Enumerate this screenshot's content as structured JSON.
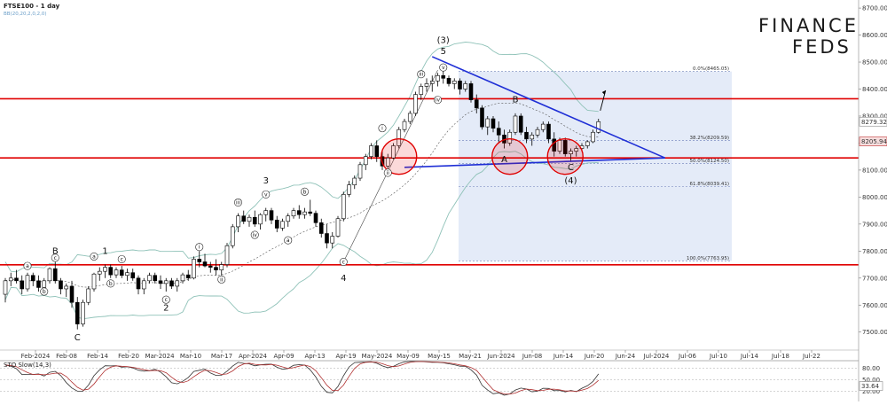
{
  "header": {
    "symbol_title": "FTSE100 - 1 day",
    "indicator_title": "BB(20,20,2,0,2,0)"
  },
  "logo": {
    "line1": "FINANCE",
    "line2": "FEDS"
  },
  "oscillator": {
    "title": "STO Slow(14,3)",
    "levels": [
      "80.00",
      "50.00",
      "20.00"
    ],
    "current_value": "33.64"
  },
  "colors": {
    "bull_candle": "#ffffff",
    "bear_candle": "#000000",
    "bollinger": "#8fc2b8",
    "support_resistance": "#e00000",
    "trendline": "#1f2fd6",
    "fib_box": "#dbe4f5",
    "stochastic_k": "#333333",
    "stochastic_d": "#b03030",
    "current_price_tag": "#c03030"
  },
  "chart_data": {
    "type": "candlestick",
    "title": "FTSE100 - 1 day",
    "y_axis": {
      "ticks": [
        "8700.00",
        "8600.00",
        "8500.00",
        "8400.00",
        "8300.00",
        "8200.00",
        "8100.00",
        "8000.00",
        "7900.00",
        "7800.00",
        "7700.00",
        "7600.00",
        "7500.00"
      ],
      "range": [
        7440,
        8720
      ],
      "price_tags": [
        "8279.32",
        "8205.94"
      ]
    },
    "x_axis": {
      "ticks": [
        "Feb-2024",
        "Feb-08",
        "Feb-14",
        "Feb-20",
        "Mar-2024",
        "Mar-10",
        "Mar-17",
        "Apr-2024",
        "Apr-09",
        "Apr-13",
        "Apr-19",
        "May-2024",
        "May-09",
        "May-15",
        "May-21",
        "Jun-2024",
        "Jun-08",
        "Jun-14",
        "Jun-20",
        "Jun-24",
        "Jul-2024",
        "Jul-06",
        "Jul-10",
        "Jul-14",
        "Jul-18",
        "Jul-22"
      ]
    },
    "horizontal_levels": [
      8364,
      8145,
      7749
    ],
    "fibonacci": [
      {
        "label": "0.0%(8465.05)",
        "value": 8465.05
      },
      {
        "label": "38.2%(8209.59)",
        "value": 8209.59
      },
      {
        "label": "50.0%(8124.50)",
        "value": 8124.5
      },
      {
        "label": "61.8%(8039.41)",
        "value": 8039.41
      },
      {
        "label": "100.0%(7763.95)",
        "value": 7763.95
      }
    ],
    "candles": [
      {
        "o": 7640,
        "h": 7700,
        "l": 7610,
        "c": 7690
      },
      {
        "o": 7690,
        "h": 7720,
        "l": 7670,
        "c": 7700
      },
      {
        "o": 7700,
        "h": 7730,
        "l": 7680,
        "c": 7690
      },
      {
        "o": 7690,
        "h": 7710,
        "l": 7640,
        "c": 7660
      },
      {
        "o": 7660,
        "h": 7720,
        "l": 7650,
        "c": 7710
      },
      {
        "o": 7710,
        "h": 7720,
        "l": 7670,
        "c": 7690
      },
      {
        "o": 7690,
        "h": 7710,
        "l": 7650,
        "c": 7665
      },
      {
        "o": 7665,
        "h": 7700,
        "l": 7650,
        "c": 7690
      },
      {
        "o": 7690,
        "h": 7740,
        "l": 7680,
        "c": 7735
      },
      {
        "o": 7735,
        "h": 7760,
        "l": 7680,
        "c": 7690
      },
      {
        "o": 7690,
        "h": 7700,
        "l": 7640,
        "c": 7660
      },
      {
        "o": 7660,
        "h": 7680,
        "l": 7630,
        "c": 7670
      },
      {
        "o": 7670,
        "h": 7690,
        "l": 7590,
        "c": 7610
      },
      {
        "o": 7610,
        "h": 7630,
        "l": 7510,
        "c": 7530
      },
      {
        "o": 7530,
        "h": 7620,
        "l": 7520,
        "c": 7610
      },
      {
        "o": 7610,
        "h": 7670,
        "l": 7600,
        "c": 7660
      },
      {
        "o": 7660,
        "h": 7720,
        "l": 7650,
        "c": 7715
      },
      {
        "o": 7715,
        "h": 7740,
        "l": 7690,
        "c": 7725
      },
      {
        "o": 7725,
        "h": 7750,
        "l": 7700,
        "c": 7740
      },
      {
        "o": 7740,
        "h": 7750,
        "l": 7700,
        "c": 7712
      },
      {
        "o": 7712,
        "h": 7740,
        "l": 7700,
        "c": 7730
      },
      {
        "o": 7730,
        "h": 7745,
        "l": 7700,
        "c": 7710
      },
      {
        "o": 7710,
        "h": 7735,
        "l": 7690,
        "c": 7720
      },
      {
        "o": 7720,
        "h": 7735,
        "l": 7690,
        "c": 7700
      },
      {
        "o": 7700,
        "h": 7710,
        "l": 7640,
        "c": 7660
      },
      {
        "o": 7660,
        "h": 7700,
        "l": 7640,
        "c": 7690
      },
      {
        "o": 7690,
        "h": 7720,
        "l": 7680,
        "c": 7710
      },
      {
        "o": 7710,
        "h": 7720,
        "l": 7680,
        "c": 7690
      },
      {
        "o": 7690,
        "h": 7710,
        "l": 7660,
        "c": 7680
      },
      {
        "o": 7680,
        "h": 7700,
        "l": 7650,
        "c": 7690
      },
      {
        "o": 7690,
        "h": 7700,
        "l": 7660,
        "c": 7670
      },
      {
        "o": 7670,
        "h": 7700,
        "l": 7650,
        "c": 7690
      },
      {
        "o": 7690,
        "h": 7720,
        "l": 7680,
        "c": 7712
      },
      {
        "o": 7712,
        "h": 7730,
        "l": 7690,
        "c": 7700
      },
      {
        "o": 7700,
        "h": 7780,
        "l": 7695,
        "c": 7770
      },
      {
        "o": 7770,
        "h": 7800,
        "l": 7740,
        "c": 7760
      },
      {
        "o": 7760,
        "h": 7790,
        "l": 7740,
        "c": 7745
      },
      {
        "o": 7745,
        "h": 7760,
        "l": 7720,
        "c": 7740
      },
      {
        "o": 7740,
        "h": 7770,
        "l": 7710,
        "c": 7730
      },
      {
        "o": 7730,
        "h": 7760,
        "l": 7710,
        "c": 7750
      },
      {
        "o": 7750,
        "h": 7830,
        "l": 7740,
        "c": 7820
      },
      {
        "o": 7820,
        "h": 7900,
        "l": 7810,
        "c": 7890
      },
      {
        "o": 7890,
        "h": 7940,
        "l": 7870,
        "c": 7930
      },
      {
        "o": 7930,
        "h": 7950,
        "l": 7900,
        "c": 7910
      },
      {
        "o": 7910,
        "h": 7935,
        "l": 7890,
        "c": 7925
      },
      {
        "o": 7925,
        "h": 7950,
        "l": 7890,
        "c": 7900
      },
      {
        "o": 7900,
        "h": 7940,
        "l": 7880,
        "c": 7935
      },
      {
        "o": 7935,
        "h": 7960,
        "l": 7910,
        "c": 7950
      },
      {
        "o": 7950,
        "h": 7960,
        "l": 7900,
        "c": 7915
      },
      {
        "o": 7915,
        "h": 7930,
        "l": 7870,
        "c": 7885
      },
      {
        "o": 7885,
        "h": 7920,
        "l": 7875,
        "c": 7910
      },
      {
        "o": 7910,
        "h": 7940,
        "l": 7890,
        "c": 7930
      },
      {
        "o": 7930,
        "h": 7960,
        "l": 7920,
        "c": 7950
      },
      {
        "o": 7950,
        "h": 7970,
        "l": 7920,
        "c": 7935
      },
      {
        "o": 7935,
        "h": 7960,
        "l": 7920,
        "c": 7945
      },
      {
        "o": 7945,
        "h": 7990,
        "l": 7930,
        "c": 7940
      },
      {
        "o": 7940,
        "h": 7950,
        "l": 7890,
        "c": 7905
      },
      {
        "o": 7905,
        "h": 7920,
        "l": 7850,
        "c": 7865
      },
      {
        "o": 7865,
        "h": 7900,
        "l": 7810,
        "c": 7830
      },
      {
        "o": 7830,
        "h": 7870,
        "l": 7810,
        "c": 7855
      },
      {
        "o": 7855,
        "h": 7930,
        "l": 7850,
        "c": 7920
      },
      {
        "o": 7920,
        "h": 8020,
        "l": 7910,
        "c": 8010
      },
      {
        "o": 8010,
        "h": 8060,
        "l": 8000,
        "c": 8045
      },
      {
        "o": 8045,
        "h": 8080,
        "l": 8030,
        "c": 8070
      },
      {
        "o": 8070,
        "h": 8130,
        "l": 8060,
        "c": 8120
      },
      {
        "o": 8120,
        "h": 8160,
        "l": 8100,
        "c": 8150
      },
      {
        "o": 8150,
        "h": 8200,
        "l": 8140,
        "c": 8190
      },
      {
        "o": 8190,
        "h": 8210,
        "l": 8130,
        "c": 8150
      },
      {
        "o": 8150,
        "h": 8170,
        "l": 8100,
        "c": 8115
      },
      {
        "o": 8115,
        "h": 8160,
        "l": 8100,
        "c": 8145
      },
      {
        "o": 8145,
        "h": 8200,
        "l": 8140,
        "c": 8190
      },
      {
        "o": 8190,
        "h": 8260,
        "l": 8180,
        "c": 8250
      },
      {
        "o": 8250,
        "h": 8290,
        "l": 8240,
        "c": 8280
      },
      {
        "o": 8280,
        "h": 8320,
        "l": 8270,
        "c": 8310
      },
      {
        "o": 8310,
        "h": 8390,
        "l": 8300,
        "c": 8380
      },
      {
        "o": 8380,
        "h": 8420,
        "l": 8360,
        "c": 8410
      },
      {
        "o": 8410,
        "h": 8440,
        "l": 8390,
        "c": 8420
      },
      {
        "o": 8420,
        "h": 8450,
        "l": 8390,
        "c": 8430
      },
      {
        "o": 8430,
        "h": 8460,
        "l": 8410,
        "c": 8450
      },
      {
        "o": 8450,
        "h": 8470,
        "l": 8420,
        "c": 8440
      },
      {
        "o": 8440,
        "h": 8450,
        "l": 8410,
        "c": 8420
      },
      {
        "o": 8420,
        "h": 8440,
        "l": 8400,
        "c": 8430
      },
      {
        "o": 8430,
        "h": 8440,
        "l": 8380,
        "c": 8400
      },
      {
        "o": 8400,
        "h": 8430,
        "l": 8390,
        "c": 8420
      },
      {
        "o": 8420,
        "h": 8430,
        "l": 8350,
        "c": 8360
      },
      {
        "o": 8360,
        "h": 8380,
        "l": 8310,
        "c": 8330
      },
      {
        "o": 8330,
        "h": 8340,
        "l": 8250,
        "c": 8260
      },
      {
        "o": 8260,
        "h": 8300,
        "l": 8230,
        "c": 8290
      },
      {
        "o": 8290,
        "h": 8300,
        "l": 8240,
        "c": 8255
      },
      {
        "o": 8255,
        "h": 8280,
        "l": 8200,
        "c": 8230
      },
      {
        "o": 8230,
        "h": 8250,
        "l": 8180,
        "c": 8200
      },
      {
        "o": 8200,
        "h": 8250,
        "l": 8190,
        "c": 8240
      },
      {
        "o": 8240,
        "h": 8310,
        "l": 8230,
        "c": 8300
      },
      {
        "o": 8300,
        "h": 8310,
        "l": 8230,
        "c": 8240
      },
      {
        "o": 8240,
        "h": 8260,
        "l": 8200,
        "c": 8215
      },
      {
        "o": 8215,
        "h": 8240,
        "l": 8190,
        "c": 8230
      },
      {
        "o": 8230,
        "h": 8260,
        "l": 8220,
        "c": 8250
      },
      {
        "o": 8250,
        "h": 8280,
        "l": 8240,
        "c": 8270
      },
      {
        "o": 8270,
        "h": 8280,
        "l": 8200,
        "c": 8215
      },
      {
        "o": 8215,
        "h": 8240,
        "l": 8150,
        "c": 8170
      },
      {
        "o": 8170,
        "h": 8220,
        "l": 8160,
        "c": 8210
      },
      {
        "o": 8210,
        "h": 8220,
        "l": 8150,
        "c": 8160
      },
      {
        "o": 8160,
        "h": 8180,
        "l": 8130,
        "c": 8170
      },
      {
        "o": 8170,
        "h": 8190,
        "l": 8150,
        "c": 8180
      },
      {
        "o": 8180,
        "h": 8200,
        "l": 8170,
        "c": 8190
      },
      {
        "o": 8190,
        "h": 8210,
        "l": 8180,
        "c": 8205
      },
      {
        "o": 8205,
        "h": 8250,
        "l": 8200,
        "c": 8240
      },
      {
        "o": 8240,
        "h": 8290,
        "l": 8235,
        "c": 8279.32
      }
    ],
    "wave_labels": [
      {
        "text": "B",
        "i": 9,
        "price": 7790,
        "kind": "big"
      },
      {
        "text": "a",
        "i": 4,
        "price": 7745,
        "kind": "roman"
      },
      {
        "text": "b",
        "i": 7,
        "price": 7650,
        "kind": "roman"
      },
      {
        "text": "c",
        "i": 9,
        "price": 7775,
        "kind": "roman"
      },
      {
        "text": "1",
        "i": 18,
        "price": 7790,
        "kind": "big"
      },
      {
        "text": "C",
        "i": 13,
        "price": 7470,
        "kind": "big"
      },
      {
        "text": "a",
        "i": 16,
        "price": 7780,
        "kind": "roman"
      },
      {
        "text": "b",
        "i": 19,
        "price": 7680,
        "kind": "roman"
      },
      {
        "text": "c",
        "i": 21,
        "price": 7770,
        "kind": "roman"
      },
      {
        "text": "2",
        "i": 29,
        "price": 7580,
        "kind": "big"
      },
      {
        "text": "c",
        "i": 29,
        "price": 7620,
        "kind": "roman"
      },
      {
        "text": "i",
        "i": 35,
        "price": 7815,
        "kind": "roman"
      },
      {
        "text": "ii",
        "i": 39,
        "price": 7695,
        "kind": "roman"
      },
      {
        "text": "iii",
        "i": 42,
        "price": 7980,
        "kind": "roman"
      },
      {
        "text": "iv",
        "i": 45,
        "price": 7860,
        "kind": "roman"
      },
      {
        "text": "v",
        "i": 47,
        "price": 8010,
        "kind": "roman"
      },
      {
        "text": "3",
        "i": 47,
        "price": 8050,
        "kind": "big"
      },
      {
        "text": "a",
        "i": 51,
        "price": 7840,
        "kind": "roman"
      },
      {
        "text": "b",
        "i": 54,
        "price": 8020,
        "kind": "roman"
      },
      {
        "text": "c",
        "i": 61,
        "price": 7760,
        "kind": "roman"
      },
      {
        "text": "4",
        "i": 61,
        "price": 7690,
        "kind": "big"
      },
      {
        "text": "i",
        "i": 68,
        "price": 8255,
        "kind": "roman"
      },
      {
        "text": "ii",
        "i": 69,
        "price": 8090,
        "kind": "roman"
      },
      {
        "text": "iii",
        "i": 75,
        "price": 8455,
        "kind": "roman"
      },
      {
        "text": "iv",
        "i": 78,
        "price": 8360,
        "kind": "roman"
      },
      {
        "text": "v",
        "i": 79,
        "price": 8480,
        "kind": "roman"
      },
      {
        "text": "(3)",
        "i": 79,
        "price": 8570,
        "kind": "big"
      },
      {
        "text": "5",
        "i": 79,
        "price": 8530,
        "kind": "big"
      },
      {
        "text": "B",
        "i": 92,
        "price": 8350,
        "kind": "big"
      },
      {
        "text": "A",
        "i": 90,
        "price": 8130,
        "kind": "big"
      },
      {
        "text": "C",
        "i": 102,
        "price": 8100,
        "kind": "big"
      },
      {
        "text": "(4)",
        "i": 102,
        "price": 8050,
        "kind": "big"
      }
    ]
  }
}
